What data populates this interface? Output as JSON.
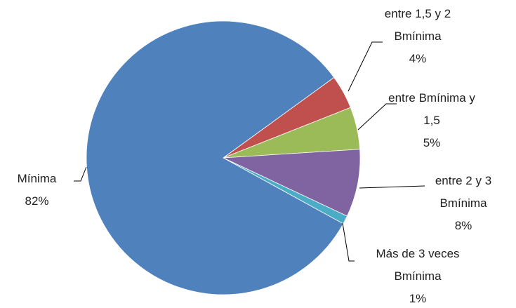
{
  "chart_data": {
    "type": "pie",
    "categories": [
      "entre 1,5 y 2 Bmínima",
      "entre Bmínima y 1,5",
      "entre 2 y 3 Bmínima",
      "Más de 3 veces Bmínima",
      "Mínima"
    ],
    "values": [
      4,
      5,
      8,
      1,
      82
    ],
    "value_labels": [
      "4%",
      "5%",
      "8%",
      "1%",
      "82%"
    ],
    "colors": [
      "#c0504d",
      "#9bbb59",
      "#8064a2",
      "#4bacc6",
      "#4f81bd"
    ]
  }
}
